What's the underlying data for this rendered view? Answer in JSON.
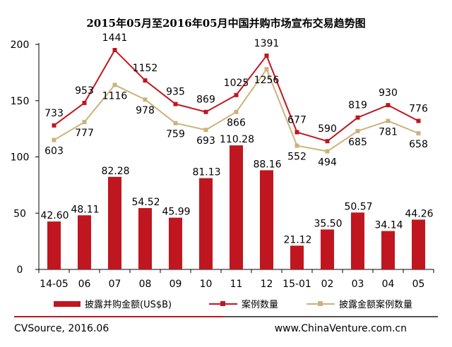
{
  "title": "2015年05月至2016年05月中国并购市场宣布交易趋势图",
  "footer": {
    "source": "CVSource, 2016.06",
    "website": "www.ChinaVenture.com.cn"
  },
  "legend": {
    "bar_label": "披露并购金额(US$B)",
    "cases_label": "案例数量",
    "disclosed_label": "披露金额案例数量"
  },
  "colors": {
    "bar": "#c0161f",
    "cases_line": "#c0161f",
    "disclosed_line": "#cdb27a",
    "axis": "#000000"
  },
  "chart_data": {
    "type": "bar+line",
    "categories": [
      "14-05",
      "06",
      "07",
      "08",
      "09",
      "10",
      "11",
      "12",
      "15-01",
      "02",
      "03",
      "04",
      "05"
    ],
    "ylim": [
      0,
      200
    ],
    "yticks": [
      0,
      50,
      100,
      150,
      200
    ],
    "series": [
      {
        "name": "披露并购金额(US$B)",
        "kind": "bar",
        "values": [
          42.6,
          48.11,
          82.28,
          54.52,
          45.99,
          81.13,
          110.28,
          88.16,
          21.12,
          35.5,
          50.57,
          34.14,
          44.26
        ],
        "labels": [
          "42.60",
          "48.11",
          "82.28",
          "54.52",
          "45.99",
          "81.13",
          "110.28",
          "88.16",
          "21.12",
          "35.50",
          "50.57",
          "34.14",
          "44.26"
        ]
      },
      {
        "name": "案例数量",
        "kind": "line",
        "values": [
          733,
          953,
          1441,
          1152,
          935,
          869,
          1025,
          1391,
          677,
          590,
          819,
          930,
          776
        ],
        "plot_values": [
          128,
          148,
          195,
          168,
          147,
          140,
          155,
          190,
          122,
          114,
          135,
          146,
          132
        ],
        "labels": [
          "733",
          "953",
          "1441",
          "1152",
          "935",
          "869",
          "1025",
          "1391",
          "677",
          "590",
          "819",
          "930",
          "776"
        ]
      },
      {
        "name": "披露金额案例数量",
        "kind": "line",
        "values": [
          603,
          777,
          1116,
          978,
          759,
          693,
          866,
          1256,
          552,
          494,
          685,
          781,
          658
        ],
        "plot_values": [
          115,
          131,
          164,
          151,
          130,
          124,
          140,
          178,
          110,
          105,
          123,
          132,
          121
        ],
        "labels": [
          "603",
          "777",
          "1116",
          "978",
          "759",
          "693",
          "866",
          "1256",
          "552",
          "494",
          "685",
          "781",
          "658"
        ]
      }
    ]
  }
}
